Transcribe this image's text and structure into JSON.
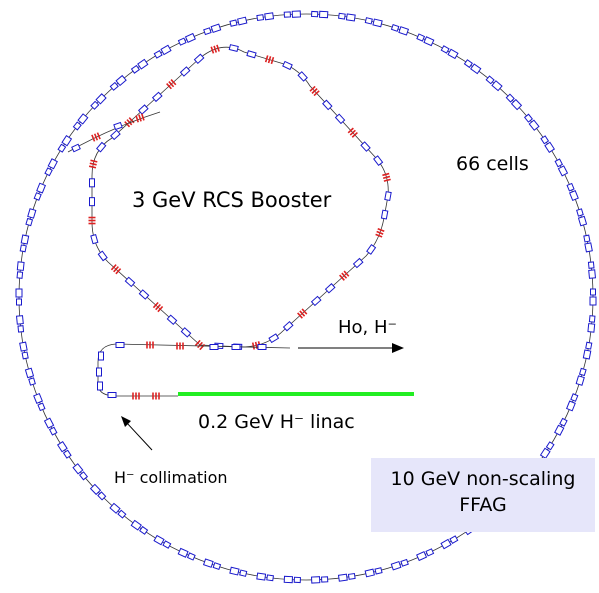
{
  "labels": {
    "booster": "3 GeV RCS Booster",
    "cells": "66  cells",
    "hbeam": "Ho, H⁻",
    "linac": "0.2 GeV H⁻ linac",
    "collimation": "H⁻ collimation",
    "ffag_line1": "10 GeV non-scaling",
    "ffag_line2": "FFAG"
  },
  "counts": {
    "ffag_cells": 66
  },
  "colors": {
    "magnet": "#1a1acc",
    "quad": "#dd2222",
    "linac": "#22ee22",
    "box": "#e6e6fa",
    "line": "#333333"
  }
}
